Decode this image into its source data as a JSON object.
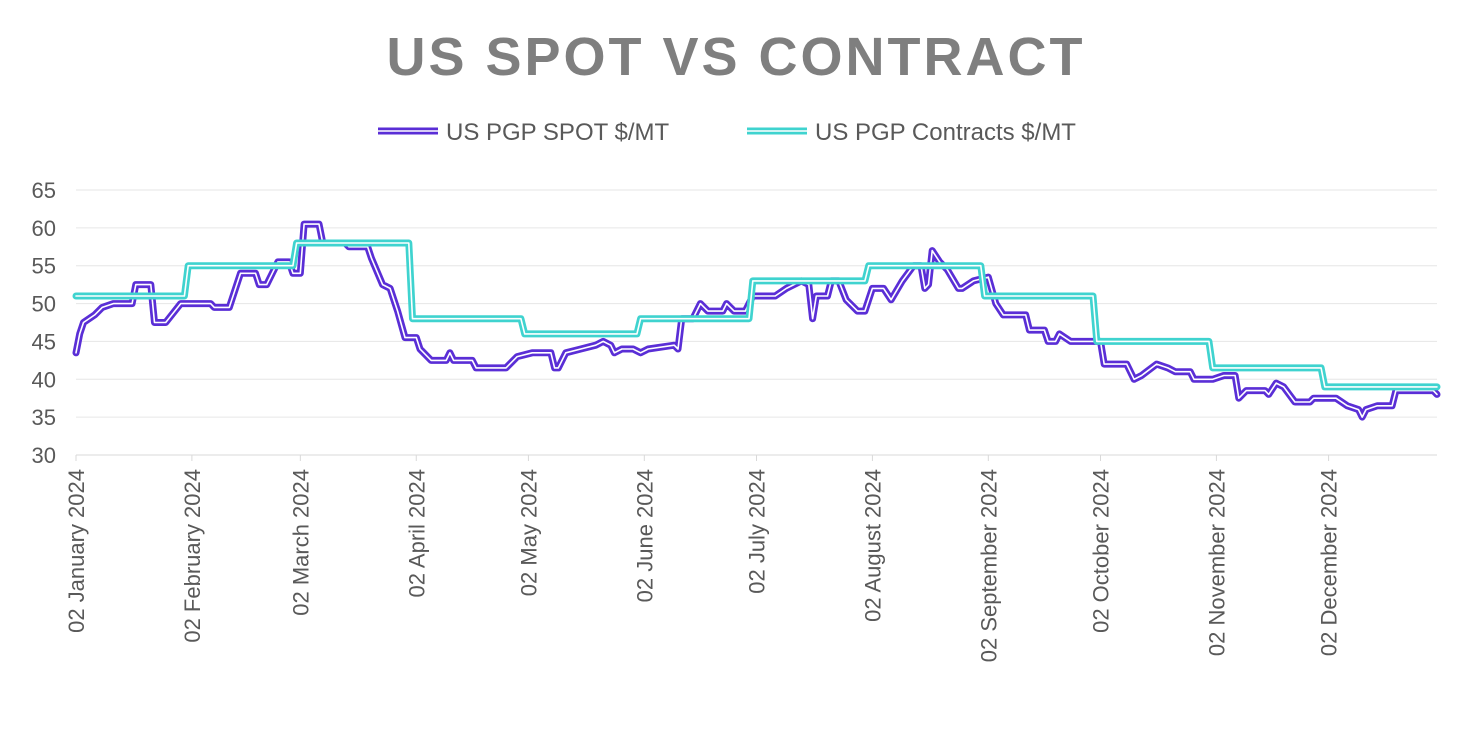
{
  "chart_data": {
    "type": "line",
    "title": "US SPOT VS CONTRACT",
    "xlabel": "",
    "ylabel": "",
    "ylim": [
      30,
      65
    ],
    "yticks": [
      "65",
      "60",
      "55",
      "50",
      "45",
      "40",
      "35",
      "30"
    ],
    "xlim": [
      "2024-01-02",
      "2024-12-31"
    ],
    "xticks": [
      {
        "label": "02 January 2024",
        "date": "2024-01-02"
      },
      {
        "label": "02 February 2024",
        "date": "2024-02-02"
      },
      {
        "label": "02 March 2024",
        "date": "2024-03-02"
      },
      {
        "label": "02 April 2024",
        "date": "2024-04-02"
      },
      {
        "label": "02 May 2024",
        "date": "2024-05-02"
      },
      {
        "label": "02 June 2024",
        "date": "2024-06-02"
      },
      {
        "label": "02 July 2024",
        "date": "2024-07-02"
      },
      {
        "label": "02 August 2024",
        "date": "2024-08-02"
      },
      {
        "label": "02 September 2024",
        "date": "2024-09-02"
      },
      {
        "label": "02 October 2024",
        "date": "2024-10-02"
      },
      {
        "label": "02 November 2024",
        "date": "2024-11-02"
      },
      {
        "label": "02 December 2024",
        "date": "2024-12-02"
      }
    ],
    "grid": true,
    "legend_position": "top",
    "series": [
      {
        "name": "US PGP SPOT $/MT",
        "color": "#5a2ed6",
        "points": [
          [
            "2024-01-02",
            43.5
          ],
          [
            "2024-01-03",
            46
          ],
          [
            "2024-01-04",
            47.5
          ],
          [
            "2024-01-07",
            48.5
          ],
          [
            "2024-01-09",
            49.5
          ],
          [
            "2024-01-12",
            50
          ],
          [
            "2024-01-17",
            50
          ],
          [
            "2024-01-18",
            52.5
          ],
          [
            "2024-01-22",
            52.5
          ],
          [
            "2024-01-23",
            47.5
          ],
          [
            "2024-01-26",
            47.5
          ],
          [
            "2024-01-30",
            50
          ],
          [
            "2024-02-07",
            50
          ],
          [
            "2024-02-08",
            49.5
          ],
          [
            "2024-02-12",
            49.5
          ],
          [
            "2024-02-15",
            54
          ],
          [
            "2024-02-19",
            54
          ],
          [
            "2024-02-20",
            52.5
          ],
          [
            "2024-02-22",
            52.5
          ],
          [
            "2024-02-25",
            55.5
          ],
          [
            "2024-02-28",
            55.5
          ],
          [
            "2024-02-29",
            54
          ],
          [
            "2024-03-02",
            54
          ],
          [
            "2024-03-03",
            60.5
          ],
          [
            "2024-03-07",
            60.5
          ],
          [
            "2024-03-08",
            58
          ],
          [
            "2024-03-14",
            58
          ],
          [
            "2024-03-15",
            57.5
          ],
          [
            "2024-03-20",
            57.5
          ],
          [
            "2024-03-21",
            56
          ],
          [
            "2024-03-24",
            52.5
          ],
          [
            "2024-03-26",
            52
          ],
          [
            "2024-03-28",
            49
          ],
          [
            "2024-03-30",
            45.5
          ],
          [
            "2024-04-02",
            45.5
          ],
          [
            "2024-04-03",
            44
          ],
          [
            "2024-04-06",
            42.5
          ],
          [
            "2024-04-10",
            42.5
          ],
          [
            "2024-04-11",
            43.5
          ],
          [
            "2024-04-12",
            42.5
          ],
          [
            "2024-04-17",
            42.5
          ],
          [
            "2024-04-18",
            41.5
          ],
          [
            "2024-04-26",
            41.5
          ],
          [
            "2024-04-29",
            43
          ],
          [
            "2024-05-03",
            43.5
          ],
          [
            "2024-05-08",
            43.5
          ],
          [
            "2024-05-09",
            41.5
          ],
          [
            "2024-05-10",
            41.5
          ],
          [
            "2024-05-12",
            43.5
          ],
          [
            "2024-05-16",
            44
          ],
          [
            "2024-05-20",
            44.5
          ],
          [
            "2024-05-22",
            45
          ],
          [
            "2024-05-24",
            44.5
          ],
          [
            "2024-05-25",
            43.5
          ],
          [
            "2024-05-27",
            44
          ],
          [
            "2024-05-30",
            44
          ],
          [
            "2024-06-01",
            43.5
          ],
          [
            "2024-06-03",
            44
          ],
          [
            "2024-06-10",
            44.5
          ],
          [
            "2024-06-11",
            44
          ],
          [
            "2024-06-12",
            48
          ],
          [
            "2024-06-15",
            48
          ],
          [
            "2024-06-17",
            50
          ],
          [
            "2024-06-19",
            49
          ],
          [
            "2024-06-23",
            49
          ],
          [
            "2024-06-24",
            50
          ],
          [
            "2024-06-26",
            49
          ],
          [
            "2024-06-29",
            49
          ],
          [
            "2024-07-01",
            51
          ],
          [
            "2024-07-07",
            51
          ],
          [
            "2024-07-10",
            52
          ],
          [
            "2024-07-14",
            53
          ],
          [
            "2024-07-16",
            52.5
          ],
          [
            "2024-07-17",
            48
          ],
          [
            "2024-07-18",
            51
          ],
          [
            "2024-07-21",
            51
          ],
          [
            "2024-07-22",
            53
          ],
          [
            "2024-07-24",
            53
          ],
          [
            "2024-07-26",
            50.5
          ],
          [
            "2024-07-29",
            49
          ],
          [
            "2024-07-31",
            49
          ],
          [
            "2024-08-02",
            52
          ],
          [
            "2024-08-05",
            52
          ],
          [
            "2024-08-07",
            50.5
          ],
          [
            "2024-08-10",
            53
          ],
          [
            "2024-08-13",
            55
          ],
          [
            "2024-08-15",
            55
          ],
          [
            "2024-08-16",
            52
          ],
          [
            "2024-08-17",
            52.5
          ],
          [
            "2024-08-18",
            57
          ],
          [
            "2024-08-20",
            55.5
          ],
          [
            "2024-08-22",
            54.5
          ],
          [
            "2024-08-25",
            52
          ],
          [
            "2024-08-26",
            52
          ],
          [
            "2024-08-29",
            53
          ],
          [
            "2024-09-02",
            53.5
          ],
          [
            "2024-09-04",
            50
          ],
          [
            "2024-09-06",
            48.5
          ],
          [
            "2024-09-12",
            48.5
          ],
          [
            "2024-09-13",
            46.5
          ],
          [
            "2024-09-17",
            46.5
          ],
          [
            "2024-09-18",
            45
          ],
          [
            "2024-09-20",
            45
          ],
          [
            "2024-09-21",
            46
          ],
          [
            "2024-09-24",
            45
          ],
          [
            "2024-10-02",
            45
          ],
          [
            "2024-10-03",
            42
          ],
          [
            "2024-10-09",
            42
          ],
          [
            "2024-10-11",
            40
          ],
          [
            "2024-10-13",
            40.5
          ],
          [
            "2024-10-17",
            42
          ],
          [
            "2024-10-20",
            41.5
          ],
          [
            "2024-10-22",
            41
          ],
          [
            "2024-10-26",
            41
          ],
          [
            "2024-10-27",
            40
          ],
          [
            "2024-11-01",
            40
          ],
          [
            "2024-11-04",
            40.5
          ],
          [
            "2024-11-07",
            40.5
          ],
          [
            "2024-11-08",
            37.5
          ],
          [
            "2024-11-10",
            38.5
          ],
          [
            "2024-11-15",
            38.5
          ],
          [
            "2024-11-16",
            38
          ],
          [
            "2024-11-18",
            39.5
          ],
          [
            "2024-11-20",
            39
          ],
          [
            "2024-11-23",
            37
          ],
          [
            "2024-11-27",
            37
          ],
          [
            "2024-11-28",
            37.5
          ],
          [
            "2024-12-04",
            37.5
          ],
          [
            "2024-12-07",
            36.5
          ],
          [
            "2024-12-10",
            36
          ],
          [
            "2024-12-11",
            35
          ],
          [
            "2024-12-12",
            36
          ],
          [
            "2024-12-15",
            36.5
          ],
          [
            "2024-12-19",
            36.5
          ],
          [
            "2024-12-20",
            38.5
          ],
          [
            "2024-12-30",
            38.5
          ],
          [
            "2024-12-31",
            38
          ]
        ]
      },
      {
        "name": "US PGP Contracts $/MT",
        "color": "#3fd3cf",
        "points": [
          [
            "2024-01-02",
            51
          ],
          [
            "2024-01-31",
            51
          ],
          [
            "2024-02-01",
            55
          ],
          [
            "2024-02-29",
            55
          ],
          [
            "2024-03-01",
            58
          ],
          [
            "2024-03-31",
            58
          ],
          [
            "2024-04-01",
            48
          ],
          [
            "2024-04-30",
            48
          ],
          [
            "2024-05-01",
            46
          ],
          [
            "2024-05-31",
            46
          ],
          [
            "2024-06-01",
            48
          ],
          [
            "2024-06-30",
            48
          ],
          [
            "2024-07-01",
            53
          ],
          [
            "2024-07-31",
            53
          ],
          [
            "2024-08-01",
            55
          ],
          [
            "2024-08-31",
            55
          ],
          [
            "2024-09-01",
            51
          ],
          [
            "2024-09-30",
            51
          ],
          [
            "2024-10-01",
            45
          ],
          [
            "2024-10-31",
            45
          ],
          [
            "2024-11-01",
            41.5
          ],
          [
            "2024-11-30",
            41.5
          ],
          [
            "2024-12-01",
            39
          ],
          [
            "2024-12-31",
            39
          ]
        ]
      }
    ]
  }
}
